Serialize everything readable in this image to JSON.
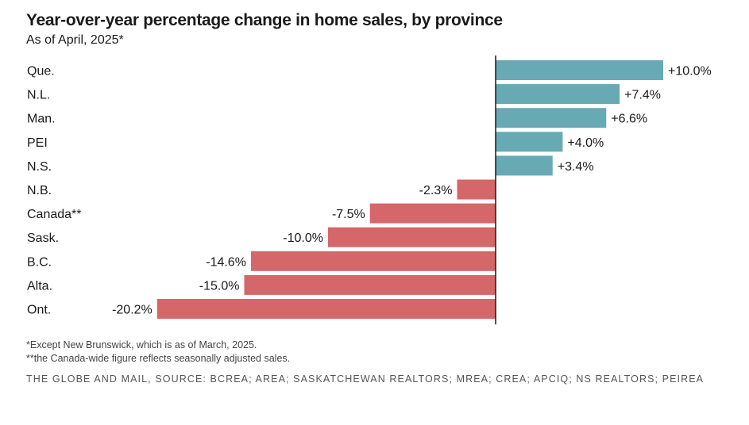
{
  "header": {
    "title": "Year-over-year percentage change in home sales, by province",
    "subtitle": "As of April, 2025*"
  },
  "chart_data": {
    "type": "bar",
    "orientation": "horizontal",
    "categories": [
      "Que.",
      "N.L.",
      "Man.",
      "PEI",
      "N.S.",
      "N.B.",
      "Canada**",
      "Sask.",
      "B.C.",
      "Alta.",
      "Ont."
    ],
    "values": [
      10.0,
      7.4,
      6.6,
      4.0,
      3.4,
      -2.3,
      -7.5,
      -10.0,
      -14.6,
      -15.0,
      -20.2
    ],
    "value_labels": [
      "+10.0%",
      "+7.4%",
      "+6.6%",
      "+4.0%",
      "+3.4%",
      "-2.3%",
      "-7.5%",
      "-10.0%",
      "-14.6%",
      "-15.0%",
      "-20.2%"
    ],
    "xlim": [
      -20.2,
      10.0
    ],
    "grid": false,
    "colors": {
      "positive": "#67aab3",
      "negative": "#d5666a",
      "axis": "#1a1a1a"
    }
  },
  "footer": {
    "note1": "*Except New Brunswick, which is as of March, 2025.",
    "note2": "**the Canada-wide figure reflects seasonally adjusted sales.",
    "source": "THE GLOBE AND MAIL, SOURCE: BCREA; AREA; SASKATCHEWAN REALTORS; MREA; CREA; APCIQ; NS REALTORS; PEIREA"
  }
}
